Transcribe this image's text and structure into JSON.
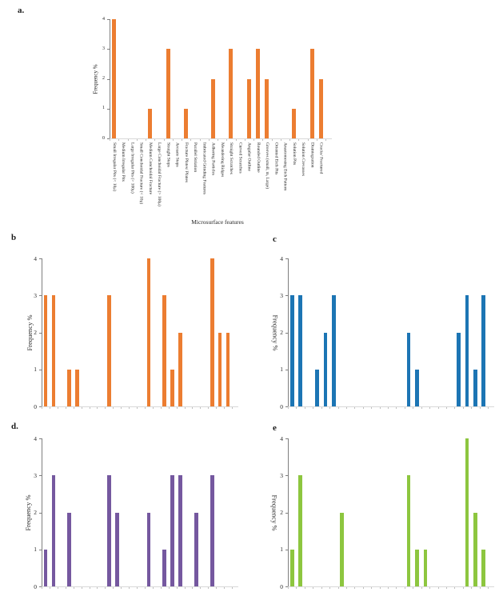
{
  "figure": {
    "description": "Five bar-chart panels of microsurface feature frequencies",
    "xlabel": "Microsurface features",
    "ylabel": "Frequency %"
  },
  "chart_data": [
    {
      "id": "a",
      "panel_label": "a.",
      "type": "bar",
      "color": "#EC7D31",
      "xlabel": "Microsurface features",
      "ylabel": "Frequency %",
      "ylabel_direction": "up",
      "ylim": [
        0,
        4
      ],
      "yticks": [
        0,
        1,
        2,
        3,
        4
      ],
      "categories": [
        "Small Irregular Pits (< 10μ)",
        "Medium Irregular Pits",
        "Large Irregular Pits (> 100μ)",
        "Small Conchoidal Fracture (< 10μ)",
        "Medium Conchoidal Fracture",
        "Large Conchoidal Fracture (> 100μ)",
        "Straight Steps",
        "Arcuate Steps",
        "Fracture Plates/ Planes",
        "Parallel Striation",
        "Imbricated Grinding Features",
        "Adhering Particles",
        "Meandering Ridges",
        "Straight Scratches",
        "Curved Scratches",
        "Angular Outline",
        "Rounded Outline",
        "Grooves (small, m, Large)",
        "Oriented Etch Pits",
        "Anastomosing Etch Pattern",
        "Solution Pits",
        "Solution Crevasses",
        "Disintegration",
        "Cracks/ Fractured"
      ],
      "values": [
        4,
        0,
        0,
        0,
        1,
        0,
        3,
        0,
        1,
        0,
        0,
        2,
        0,
        3,
        0,
        2,
        3,
        2,
        0,
        0,
        1,
        0,
        3,
        2
      ]
    },
    {
      "id": "b",
      "panel_label": "b",
      "type": "bar",
      "color": "#EC7D31",
      "ylabel": "Frequency %",
      "ylabel_direction": "up",
      "ylim": [
        0,
        4
      ],
      "yticks": [
        0,
        1,
        2,
        3,
        4
      ],
      "values": [
        3,
        3,
        0,
        1,
        1,
        0,
        0,
        0,
        3,
        0,
        0,
        0,
        0,
        4,
        0,
        3,
        1,
        2,
        0,
        0,
        0,
        4,
        2,
        2
      ]
    },
    {
      "id": "c",
      "panel_label": "c",
      "type": "bar",
      "color": "#1C75B4",
      "ylabel": "Frequency %",
      "ylabel_direction": "down",
      "ylim": [
        0,
        4
      ],
      "yticks": [
        0,
        1,
        2,
        3,
        4
      ],
      "values": [
        3,
        3,
        0,
        1,
        2,
        3,
        0,
        0,
        0,
        0,
        0,
        0,
        0,
        0,
        2,
        1,
        0,
        0,
        0,
        0,
        2,
        3,
        1,
        3
      ]
    },
    {
      "id": "d",
      "panel_label": "d.",
      "type": "bar",
      "color": "#75589F",
      "ylabel": "Frequency %",
      "ylabel_direction": "up",
      "ylim": [
        0,
        4
      ],
      "yticks": [
        0,
        1,
        2,
        3,
        4
      ],
      "values": [
        1,
        3,
        0,
        2,
        0,
        0,
        0,
        0,
        3,
        2,
        0,
        0,
        0,
        2,
        0,
        1,
        3,
        3,
        0,
        2,
        0,
        3,
        0,
        0
      ]
    },
    {
      "id": "e",
      "panel_label": "e",
      "type": "bar",
      "color": "#8DC63F",
      "ylabel": "Frequency %",
      "ylabel_direction": "down",
      "ylim": [
        0,
        4
      ],
      "yticks": [
        0,
        1,
        2,
        3,
        4
      ],
      "values": [
        1,
        3,
        0,
        0,
        0,
        0,
        2,
        0,
        0,
        0,
        0,
        0,
        0,
        0,
        3,
        1,
        1,
        0,
        0,
        0,
        0,
        4,
        2,
        1
      ]
    }
  ]
}
